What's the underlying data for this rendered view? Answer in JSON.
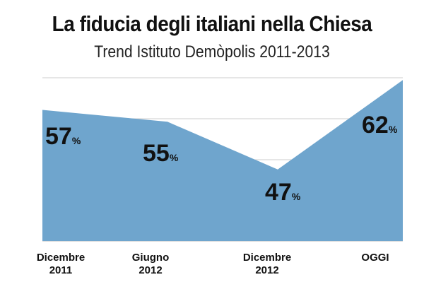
{
  "title": "La fiducia degli italiani nella Chiesa",
  "subtitle": "Trend Istituto Demòpolis 2011-2013",
  "chart_data": {
    "type": "area",
    "categories": [
      [
        "Dicembre",
        "2011"
      ],
      [
        "Giugno",
        "2012"
      ],
      [
        "Dicembre",
        "2012"
      ],
      [
        "OGGI"
      ]
    ],
    "values": [
      57,
      55,
      47,
      62
    ],
    "data_labels": [
      "57",
      "55",
      "47",
      "62"
    ],
    "unit": "%",
    "ylim": [
      35,
      65
    ],
    "grid": true,
    "fill_color": "#6fa5cd",
    "gridline_color": "#cccccc"
  }
}
